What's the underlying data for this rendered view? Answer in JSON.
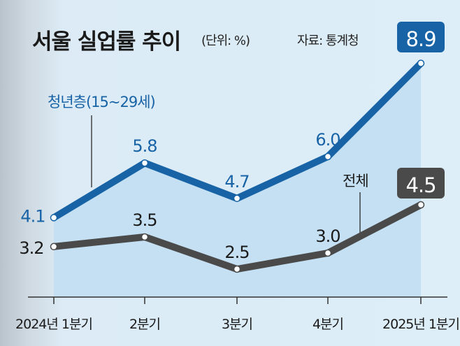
{
  "title": "서울 실업률 추이",
  "unit": "(단위: %)",
  "source": "자료: 통계청",
  "chart_data": {
    "type": "line",
    "title": "서울 실업률 추이",
    "unit": "(단위: %)",
    "categories": [
      "2024년 1분기",
      "2분기",
      "3분기",
      "4분기",
      "2025년 1분기"
    ],
    "series": [
      {
        "name": "청년층(15~29세)",
        "values": [
          4.1,
          5.8,
          4.7,
          6.0,
          8.9
        ],
        "color": "#1763a6"
      },
      {
        "name": "전체",
        "values": [
          3.2,
          3.5,
          2.5,
          3.0,
          4.5
        ],
        "color": "#4a4a4a"
      }
    ],
    "ylim": [
      0,
      10
    ],
    "grid": false,
    "fill_color": "#c4e0f2"
  }
}
